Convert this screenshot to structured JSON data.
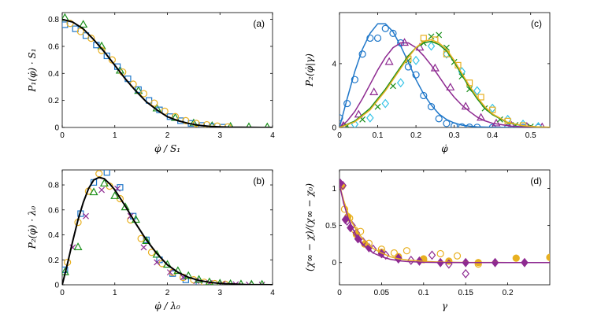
{
  "colors": {
    "blue": "#1f77c9",
    "orange": "#e8b020",
    "green": "#1a8f1a",
    "purple": "#8e2a91",
    "cyan": "#35c3e6",
    "black": "#000000"
  },
  "chart_data": [
    {
      "type": "scatter",
      "panel": "(a)",
      "xlabel": "φ̇ / S₁",
      "ylabel": "P₁(φ̇) · S₁",
      "xlim": [
        0,
        4
      ],
      "ylim": [
        0,
        0.85
      ],
      "xticks": [
        0,
        1,
        2,
        3,
        4
      ],
      "yticks": [
        0,
        0.2,
        0.4,
        0.6,
        0.8
      ],
      "curves": [
        {
          "name": "fit",
          "color": "black",
          "x": [
            0,
            0.2,
            0.4,
            0.6,
            0.8,
            1.0,
            1.2,
            1.4,
            1.6,
            1.8,
            2.0,
            2.2,
            2.4,
            2.6,
            2.8,
            3.0,
            3.2,
            3.4,
            3.6,
            3.8,
            4.0
          ],
          "y": [
            0.8,
            0.78,
            0.73,
            0.65,
            0.56,
            0.46,
            0.36,
            0.27,
            0.19,
            0.13,
            0.08,
            0.05,
            0.03,
            0.016,
            0.008,
            0.004,
            0.002,
            0.001,
            0.0005,
            0.0002,
            0.0001
          ]
        }
      ],
      "series": [
        {
          "name": "green-triangles",
          "marker": "triangle",
          "color": "green",
          "x": [
            0.05,
            0.4,
            0.75,
            1.1,
            1.45,
            1.8,
            2.15,
            2.5,
            2.85,
            3.2,
            3.55,
            3.9
          ],
          "y": [
            0.81,
            0.76,
            0.6,
            0.42,
            0.27,
            0.14,
            0.07,
            0.03,
            0.01,
            0.005,
            0.002,
            0.001
          ]
        },
        {
          "name": "blue-squares",
          "marker": "square",
          "color": "blue",
          "x": [
            0.05,
            0.25,
            0.45,
            0.65,
            0.85,
            1.05,
            1.25,
            1.45,
            1.65,
            1.85,
            2.05,
            2.25,
            2.45,
            2.65,
            2.85,
            3.05
          ],
          "y": [
            0.76,
            0.73,
            0.68,
            0.61,
            0.53,
            0.45,
            0.36,
            0.28,
            0.2,
            0.13,
            0.08,
            0.05,
            0.03,
            0.015,
            0.006,
            0.002
          ]
        },
        {
          "name": "orange-circles",
          "marker": "circle",
          "color": "orange",
          "x": [
            0.15,
            0.35,
            0.55,
            0.75,
            0.95,
            1.15,
            1.35,
            1.55,
            1.75,
            1.95,
            2.15,
            2.35,
            2.55,
            2.75,
            2.95,
            3.15
          ],
          "y": [
            0.77,
            0.71,
            0.66,
            0.57,
            0.5,
            0.41,
            0.32,
            0.25,
            0.18,
            0.12,
            0.08,
            0.05,
            0.03,
            0.02,
            0.01,
            0.004
          ]
        }
      ]
    },
    {
      "type": "scatter",
      "panel": "(b)",
      "xlabel": "φ̇ / λ₀",
      "ylabel": "P₂(φ̇) · λ₀",
      "xlim": [
        0,
        4
      ],
      "ylim": [
        0,
        0.92
      ],
      "xticks": [
        0,
        1,
        2,
        3,
        4
      ],
      "yticks": [
        0,
        0.2,
        0.4,
        0.6,
        0.8
      ],
      "curves": [
        {
          "name": "fit",
          "color": "black",
          "x": [
            0,
            0.1,
            0.2,
            0.3,
            0.4,
            0.5,
            0.6,
            0.7,
            0.8,
            0.9,
            1.0,
            1.2,
            1.4,
            1.6,
            1.8,
            2.0,
            2.2,
            2.4,
            2.6,
            2.8,
            3.0,
            3.5,
            4.0
          ],
          "y": [
            0.0,
            0.17,
            0.35,
            0.52,
            0.66,
            0.77,
            0.84,
            0.86,
            0.85,
            0.81,
            0.76,
            0.63,
            0.49,
            0.36,
            0.25,
            0.16,
            0.1,
            0.06,
            0.035,
            0.02,
            0.011,
            0.002,
            0.0003
          ]
        }
      ],
      "series": [
        {
          "name": "blue-squares",
          "marker": "square",
          "color": "blue",
          "x": [
            0.05,
            0.35,
            0.6,
            0.85,
            1.1,
            1.35,
            1.6,
            1.85,
            2.1,
            2.35,
            2.6
          ],
          "y": [
            0.12,
            0.57,
            0.82,
            0.9,
            0.78,
            0.55,
            0.36,
            0.2,
            0.09,
            0.04,
            0.01
          ]
        },
        {
          "name": "orange-circles",
          "marker": "circle",
          "color": "orange",
          "x": [
            0.1,
            0.3,
            0.5,
            0.7,
            0.9,
            1.1,
            1.3,
            1.5,
            1.7,
            1.9,
            2.1,
            2.3,
            2.5,
            2.7,
            2.9,
            3.1
          ],
          "y": [
            0.18,
            0.5,
            0.75,
            0.89,
            0.79,
            0.69,
            0.52,
            0.37,
            0.26,
            0.17,
            0.1,
            0.06,
            0.04,
            0.02,
            0.01,
            0.005
          ]
        },
        {
          "name": "purple-crosses",
          "marker": "x",
          "color": "purple",
          "x": [
            0.2,
            0.45,
            0.75,
            1.05,
            1.3,
            1.55,
            1.8,
            2.05,
            2.3,
            2.55,
            2.8,
            3.05,
            3.3,
            3.55,
            3.8
          ],
          "y": [
            0.3,
            0.55,
            0.76,
            0.77,
            0.55,
            0.3,
            0.18,
            0.1,
            0.06,
            0.03,
            0.015,
            0.008,
            0.004,
            0.002,
            0.001
          ]
        },
        {
          "name": "green-triangles",
          "marker": "triangle",
          "color": "green",
          "x": [
            0.05,
            0.3,
            0.6,
            0.8,
            1.0,
            1.2,
            1.4,
            1.6,
            1.8,
            2.0,
            2.2,
            2.4,
            2.6,
            2.8,
            3.0,
            3.2,
            3.4,
            3.6,
            3.8
          ],
          "y": [
            0.1,
            0.3,
            0.74,
            0.81,
            0.71,
            0.62,
            0.52,
            0.35,
            0.24,
            0.16,
            0.11,
            0.07,
            0.04,
            0.02,
            0.01,
            0.006,
            0.003,
            0.002,
            0.001
          ]
        }
      ]
    },
    {
      "type": "scatter",
      "panel": "(c)",
      "xlabel": "φ̇",
      "ylabel": "P₂(φ̇|γ)",
      "xlim": [
        0,
        0.55
      ],
      "ylim": [
        0,
        7.2
      ],
      "xticks": [
        0,
        0.1,
        0.2,
        0.3,
        0.4,
        0.5
      ],
      "yticks": [
        0,
        4
      ],
      "curves": [
        {
          "name": "blue-fit",
          "color": "blue",
          "x": [
            0,
            0.02,
            0.04,
            0.06,
            0.08,
            0.1,
            0.12,
            0.14,
            0.16,
            0.18,
            0.2,
            0.22,
            0.24,
            0.26,
            0.28,
            0.3,
            0.32,
            0.34,
            0.36,
            0.4,
            0.45,
            0.5,
            0.55
          ],
          "y": [
            0,
            1.8,
            3.5,
            4.9,
            5.9,
            6.5,
            6.5,
            6.0,
            5.1,
            4.1,
            3.0,
            2.1,
            1.4,
            0.85,
            0.5,
            0.28,
            0.15,
            0.08,
            0.04,
            0.01,
            0.002,
            0,
            0
          ]
        },
        {
          "name": "purple-fit",
          "color": "purple",
          "x": [
            0,
            0.02,
            0.04,
            0.06,
            0.08,
            0.1,
            0.12,
            0.14,
            0.16,
            0.18,
            0.2,
            0.22,
            0.24,
            0.26,
            0.28,
            0.3,
            0.32,
            0.34,
            0.36,
            0.38,
            0.4,
            0.45,
            0.5,
            0.55
          ],
          "y": [
            0,
            0.4,
            1.0,
            1.8,
            2.7,
            3.6,
            4.4,
            5.0,
            5.3,
            5.3,
            5.0,
            4.5,
            3.9,
            3.2,
            2.5,
            1.9,
            1.4,
            1.0,
            0.65,
            0.42,
            0.26,
            0.08,
            0.02,
            0.005
          ]
        },
        {
          "name": "green-fit",
          "color": "green",
          "x": [
            0,
            0.04,
            0.08,
            0.12,
            0.16,
            0.18,
            0.2,
            0.22,
            0.24,
            0.26,
            0.28,
            0.3,
            0.32,
            0.34,
            0.36,
            0.38,
            0.4,
            0.44,
            0.48,
            0.52,
            0.55
          ],
          "y": [
            0,
            0.4,
            1.2,
            2.4,
            3.8,
            4.5,
            5.0,
            5.3,
            5.4,
            5.2,
            4.8,
            4.1,
            3.3,
            2.5,
            1.8,
            1.2,
            0.8,
            0.3,
            0.1,
            0.03,
            0.01
          ]
        },
        {
          "name": "orange-fit",
          "color": "orange",
          "x": [
            0,
            0.04,
            0.08,
            0.12,
            0.16,
            0.18,
            0.2,
            0.22,
            0.24,
            0.26,
            0.28,
            0.3,
            0.32,
            0.34,
            0.36,
            0.38,
            0.4,
            0.44,
            0.48,
            0.52,
            0.55
          ],
          "y": [
            0,
            0.35,
            1.1,
            2.3,
            3.7,
            4.4,
            5.0,
            5.4,
            5.5,
            5.3,
            4.9,
            4.2,
            3.4,
            2.6,
            1.9,
            1.3,
            0.85,
            0.32,
            0.11,
            0.03,
            0.01
          ]
        }
      ],
      "series": [
        {
          "name": "blue-circles",
          "marker": "circle",
          "color": "blue",
          "x": [
            0.0,
            0.02,
            0.04,
            0.06,
            0.08,
            0.1,
            0.12,
            0.14,
            0.16,
            0.18,
            0.2,
            0.22,
            0.24,
            0.26,
            0.28,
            0.3,
            0.32,
            0.34,
            0.36,
            0.4,
            0.44,
            0.48,
            0.52
          ],
          "y": [
            0.6,
            1.5,
            3.0,
            4.6,
            5.6,
            5.6,
            6.2,
            5.9,
            5.3,
            3.8,
            3.3,
            2.0,
            1.3,
            0.55,
            0.25,
            0.1,
            0.04,
            0.02,
            0.01,
            0,
            0,
            0,
            0
          ]
        },
        {
          "name": "purple-triangles",
          "marker": "triangle",
          "color": "purple",
          "x": [
            0.01,
            0.05,
            0.09,
            0.13,
            0.17,
            0.21,
            0.25,
            0.29,
            0.33,
            0.37,
            0.41,
            0.45,
            0.49,
            0.53
          ],
          "y": [
            0.1,
            0.8,
            2.2,
            4.1,
            5.3,
            5.0,
            3.7,
            2.5,
            1.3,
            0.6,
            0.25,
            0.1,
            0.04,
            0.01
          ]
        },
        {
          "name": "green-crosses",
          "marker": "x",
          "color": "green",
          "x": [
            0.02,
            0.06,
            0.1,
            0.14,
            0.18,
            0.22,
            0.24,
            0.26,
            0.28,
            0.3,
            0.32,
            0.34,
            0.38,
            0.42,
            0.46,
            0.5
          ],
          "y": [
            0.1,
            0.5,
            1.3,
            2.6,
            4.2,
            5.3,
            5.7,
            5.8,
            5.0,
            4.1,
            3.2,
            2.4,
            1.2,
            0.5,
            0.15,
            0.05
          ]
        },
        {
          "name": "cyan-diamonds",
          "marker": "diamond",
          "color": "cyan",
          "x": [
            0.04,
            0.08,
            0.12,
            0.16,
            0.2,
            0.24,
            0.28,
            0.32,
            0.36,
            0.4,
            0.44,
            0.48,
            0.52
          ],
          "y": [
            0.2,
            0.6,
            1.5,
            2.8,
            4.2,
            5.1,
            4.6,
            3.5,
            2.3,
            1.2,
            0.5,
            0.2,
            0.05
          ]
        },
        {
          "name": "orange-squares",
          "marker": "square",
          "color": "orange",
          "x": [
            0.18,
            0.22,
            0.25,
            0.28,
            0.31,
            0.34,
            0.37,
            0.4,
            0.44,
            0.48
          ],
          "y": [
            4.3,
            5.6,
            5.5,
            4.6,
            3.9,
            2.8,
            1.9,
            1.1,
            0.4,
            0.12
          ]
        }
      ]
    },
    {
      "type": "scatter",
      "panel": "(d)",
      "xlabel": "γ",
      "ylabel": "(χ∞ − χ)/(χ∞ − χ₀)",
      "xlim": [
        0,
        0.25
      ],
      "ylim": [
        -0.3,
        1.25
      ],
      "xticks": [
        0,
        0.05,
        0.1,
        0.15,
        0.2
      ],
      "yticks": [
        0,
        0.5,
        1
      ],
      "curves": [
        {
          "name": "orange-fit",
          "color": "orange",
          "x": [
            0,
            0.005,
            0.01,
            0.015,
            0.02,
            0.025,
            0.03,
            0.04,
            0.05,
            0.06,
            0.07,
            0.08,
            0.1,
            0.12,
            0.15,
            0.2,
            0.25
          ],
          "y": [
            1.05,
            0.84,
            0.67,
            0.54,
            0.44,
            0.36,
            0.29,
            0.19,
            0.13,
            0.08,
            0.05,
            0.035,
            0.015,
            0.007,
            0.002,
            0.0,
            0.0
          ]
        },
        {
          "name": "purple-fit",
          "color": "purple",
          "x": [
            0,
            0.005,
            0.01,
            0.015,
            0.02,
            0.025,
            0.03,
            0.04,
            0.05,
            0.06,
            0.07,
            0.08,
            0.1,
            0.12,
            0.15,
            0.2,
            0.25
          ],
          "y": [
            1.05,
            0.8,
            0.61,
            0.47,
            0.37,
            0.29,
            0.22,
            0.13,
            0.08,
            0.045,
            0.025,
            0.014,
            0.004,
            0.001,
            0,
            0,
            0
          ]
        }
      ],
      "series": [
        {
          "name": "orange-open-circles",
          "marker": "circle",
          "color": "orange",
          "x": [
            0.002,
            0.006,
            0.012,
            0.018,
            0.025,
            0.035,
            0.05,
            0.065,
            0.08,
            0.1,
            0.12,
            0.14,
            0.165
          ],
          "y": [
            1.05,
            0.72,
            0.6,
            0.44,
            0.42,
            0.26,
            0.18,
            0.13,
            0.16,
            0.05,
            0.12,
            0.09,
            -0.02
          ]
        },
        {
          "name": "orange-filled-circles",
          "marker": "circle-filled",
          "color": "orange",
          "x": [
            0.003,
            0.01,
            0.02,
            0.03,
            0.05,
            0.07,
            0.1,
            0.13,
            0.165,
            0.21,
            0.25
          ],
          "y": [
            1.03,
            0.62,
            0.38,
            0.25,
            0.14,
            0.08,
            0.04,
            0.02,
            0.0,
            0.06,
            0.07
          ]
        },
        {
          "name": "purple-open-diamonds",
          "marker": "diamond",
          "color": "purple",
          "x": [
            0.004,
            0.009,
            0.015,
            0.02,
            0.028,
            0.04,
            0.055,
            0.07,
            0.085,
            0.11,
            0.13,
            0.15
          ],
          "y": [
            1.04,
            0.56,
            0.5,
            0.4,
            0.28,
            0.18,
            0.1,
            0.06,
            0.03,
            0.1,
            -0.02,
            -0.15
          ]
        },
        {
          "name": "purple-filled-diamonds",
          "marker": "diamond-filled",
          "color": "purple",
          "x": [
            0.001,
            0.007,
            0.013,
            0.022,
            0.035,
            0.05,
            0.07,
            0.095,
            0.12,
            0.15,
            0.185,
            0.22
          ],
          "y": [
            1.07,
            0.58,
            0.47,
            0.32,
            0.2,
            0.12,
            0.05,
            0.02,
            0.0,
            0.0,
            0.0,
            0.0
          ]
        }
      ]
    }
  ]
}
